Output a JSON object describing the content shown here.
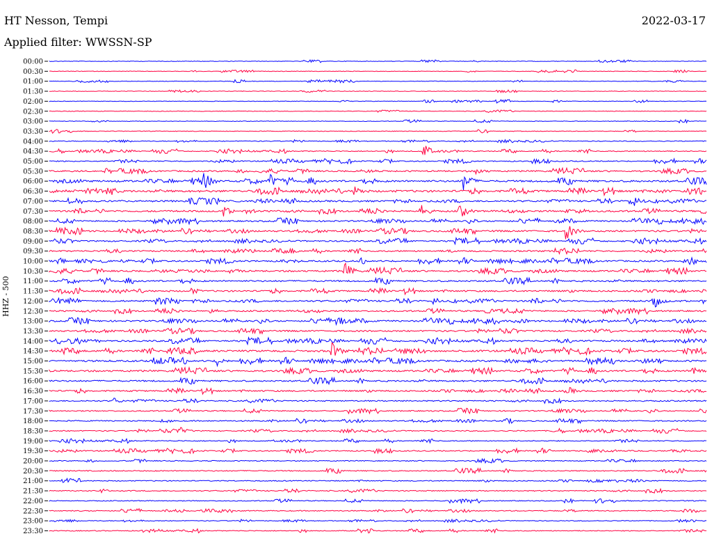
{
  "header": {
    "station": "HT Nesson, Tempi",
    "date": "2022-03-17",
    "filter": "Applied filter: WWSSN-SP"
  },
  "channel_label": "HHZ - 500",
  "colors": {
    "blue": "#0000ff",
    "red": "#ff0040"
  },
  "rows": [
    {
      "time": "00:00",
      "color": "blue",
      "activity": 0.05
    },
    {
      "time": "00:30",
      "color": "red",
      "activity": 0.04
    },
    {
      "time": "01:00",
      "color": "blue",
      "activity": 0.05
    },
    {
      "time": "01:30",
      "color": "red",
      "activity": 0.05
    },
    {
      "time": "02:00",
      "color": "blue",
      "activity": 0.05
    },
    {
      "time": "02:30",
      "color": "red",
      "activity": 0.07
    },
    {
      "time": "03:00",
      "color": "blue",
      "activity": 0.06
    },
    {
      "time": "03:30",
      "color": "red",
      "activity": 0.1
    },
    {
      "time": "04:00",
      "color": "blue",
      "activity": 0.15
    },
    {
      "time": "04:30",
      "color": "red",
      "activity": 0.25
    },
    {
      "time": "05:00",
      "color": "blue",
      "activity": 0.3
    },
    {
      "time": "05:30",
      "color": "red",
      "activity": 0.5
    },
    {
      "time": "06:00",
      "color": "blue",
      "activity": 0.7
    },
    {
      "time": "06:30",
      "color": "red",
      "activity": 0.8
    },
    {
      "time": "07:00",
      "color": "blue",
      "activity": 0.6
    },
    {
      "time": "07:30",
      "color": "red",
      "activity": 0.6
    },
    {
      "time": "08:00",
      "color": "blue",
      "activity": 0.5
    },
    {
      "time": "08:30",
      "color": "red",
      "activity": 0.6
    },
    {
      "time": "09:00",
      "color": "blue",
      "activity": 0.5
    },
    {
      "time": "09:30",
      "color": "red",
      "activity": 0.5
    },
    {
      "time": "10:00",
      "color": "blue",
      "activity": 0.55
    },
    {
      "time": "10:30",
      "color": "red",
      "activity": 0.6
    },
    {
      "time": "11:00",
      "color": "blue",
      "activity": 0.55
    },
    {
      "time": "11:30",
      "color": "red",
      "activity": 0.55
    },
    {
      "time": "12:00",
      "color": "blue",
      "activity": 0.6
    },
    {
      "time": "12:30",
      "color": "red",
      "activity": 0.5
    },
    {
      "time": "13:00",
      "color": "blue",
      "activity": 0.55
    },
    {
      "time": "13:30",
      "color": "red",
      "activity": 0.55
    },
    {
      "time": "14:00",
      "color": "blue",
      "activity": 0.6
    },
    {
      "time": "14:30",
      "color": "red",
      "activity": 0.7
    },
    {
      "time": "15:00",
      "color": "blue",
      "activity": 0.65
    },
    {
      "time": "15:30",
      "color": "red",
      "activity": 0.6
    },
    {
      "time": "16:00",
      "color": "blue",
      "activity": 0.55
    },
    {
      "time": "16:30",
      "color": "red",
      "activity": 0.5
    },
    {
      "time": "17:00",
      "color": "blue",
      "activity": 0.4
    },
    {
      "time": "17:30",
      "color": "red",
      "activity": 0.35
    },
    {
      "time": "18:00",
      "color": "blue",
      "activity": 0.35
    },
    {
      "time": "18:30",
      "color": "red",
      "activity": 0.3
    },
    {
      "time": "19:00",
      "color": "blue",
      "activity": 0.25
    },
    {
      "time": "19:30",
      "color": "red",
      "activity": 0.3
    },
    {
      "time": "20:00",
      "color": "blue",
      "activity": 0.25
    },
    {
      "time": "20:30",
      "color": "red",
      "activity": 0.3
    },
    {
      "time": "21:00",
      "color": "blue",
      "activity": 0.25
    },
    {
      "time": "21:30",
      "color": "red",
      "activity": 0.3
    },
    {
      "time": "22:00",
      "color": "blue",
      "activity": 0.2
    },
    {
      "time": "22:30",
      "color": "red",
      "activity": 0.25
    },
    {
      "time": "23:00",
      "color": "blue",
      "activity": 0.15
    },
    {
      "time": "23:30",
      "color": "red",
      "activity": 0.2
    }
  ],
  "events": [
    {
      "row": 9,
      "t": 0.57,
      "amp": 10
    },
    {
      "row": 11,
      "t": 0.65,
      "amp": 6
    },
    {
      "row": 12,
      "t": 0.235,
      "amp": 14
    },
    {
      "row": 12,
      "t": 0.335,
      "amp": 12
    },
    {
      "row": 12,
      "t": 0.63,
      "amp": 14
    },
    {
      "row": 13,
      "t": 0.087,
      "amp": 12
    },
    {
      "row": 13,
      "t": 0.465,
      "amp": 9
    },
    {
      "row": 14,
      "t": 0.885,
      "amp": 12
    },
    {
      "row": 15,
      "t": 0.265,
      "amp": 8
    },
    {
      "row": 15,
      "t": 0.565,
      "amp": 10
    },
    {
      "row": 15,
      "t": 0.625,
      "amp": 11
    },
    {
      "row": 17,
      "t": 0.785,
      "amp": 14
    },
    {
      "row": 19,
      "t": 0.365,
      "amp": 6
    },
    {
      "row": 20,
      "t": 0.975,
      "amp": 8
    },
    {
      "row": 21,
      "t": 0.012,
      "amp": 9
    },
    {
      "row": 21,
      "t": 0.45,
      "amp": 12
    },
    {
      "row": 23,
      "t": 0.215,
      "amp": 6
    },
    {
      "row": 24,
      "t": 0.92,
      "amp": 11
    },
    {
      "row": 25,
      "t": 0.245,
      "amp": 5
    },
    {
      "row": 26,
      "t": 0.435,
      "amp": 13
    },
    {
      "row": 29,
      "t": 0.02,
      "amp": 7
    },
    {
      "row": 29,
      "t": 0.43,
      "amp": 13
    },
    {
      "row": 30,
      "t": 0.255,
      "amp": 8
    },
    {
      "row": 31,
      "t": 0.98,
      "amp": 10
    },
    {
      "row": 33,
      "t": 0.787,
      "amp": 8
    },
    {
      "row": 34,
      "t": 0.098,
      "amp": 5
    },
    {
      "row": 37,
      "t": 0.198,
      "amp": 6
    }
  ]
}
